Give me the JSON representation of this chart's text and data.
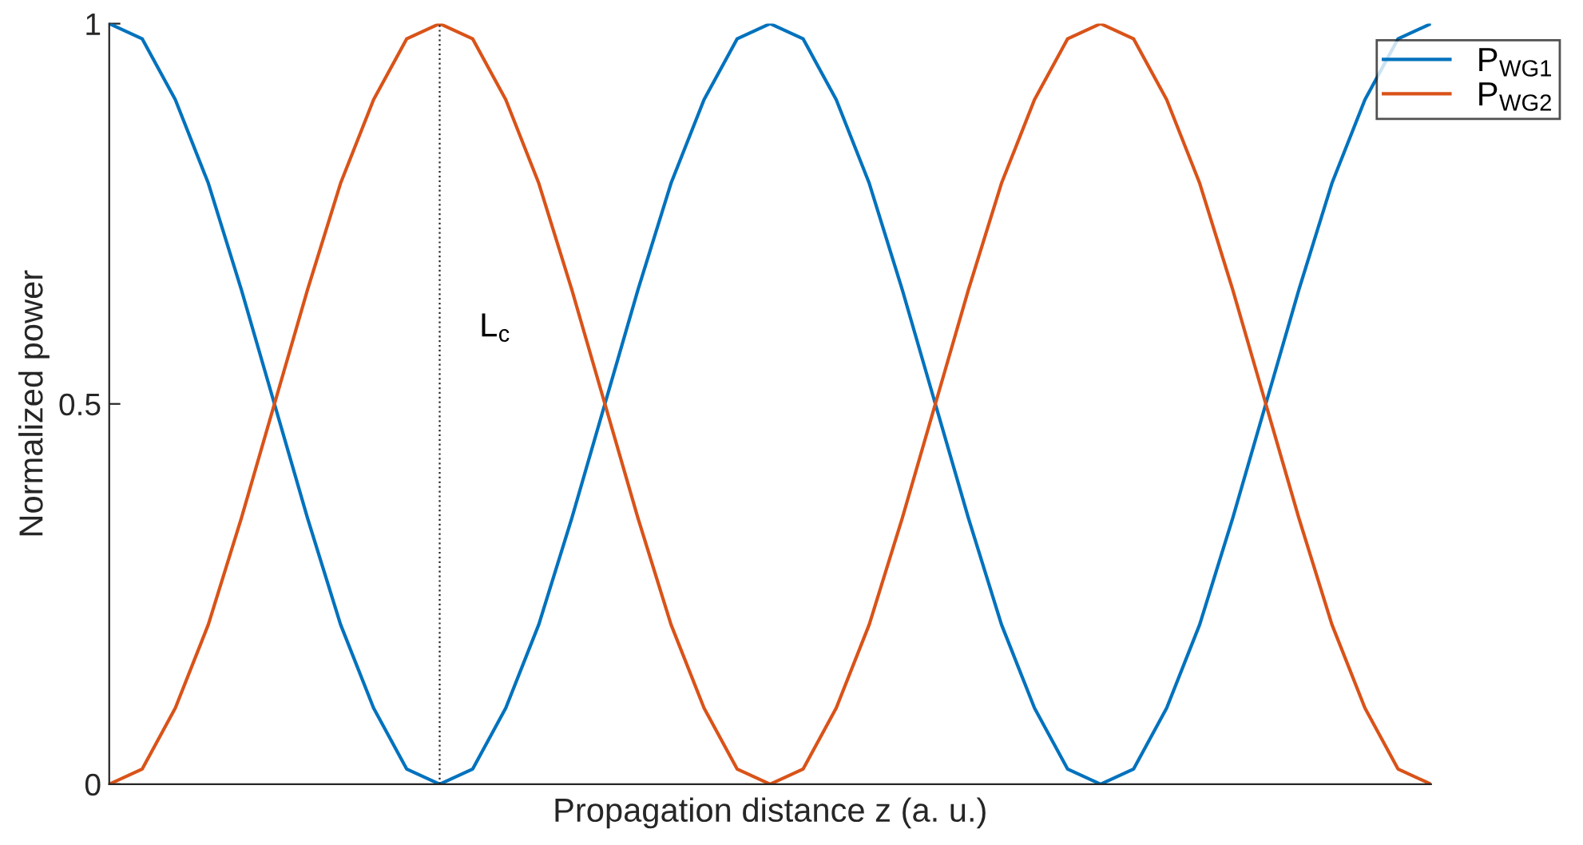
{
  "chart_data": {
    "type": "line",
    "xlabel": "Propagation distance z (a. u.)",
    "ylabel": "Normalized power",
    "categories": [
      null,
      null,
      null,
      null,
      null,
      null,
      null,
      null,
      null,
      null,
      null,
      null,
      null,
      null,
      null,
      null,
      null,
      null,
      null,
      null,
      null,
      null,
      null,
      null,
      null,
      null,
      null,
      null,
      null,
      null,
      null,
      null,
      null,
      null,
      null,
      null,
      null,
      null,
      null,
      null,
      null
    ],
    "series": [
      {
        "name": "P$_{WG1}$",
        "color": "#0072bd",
        "values": [
          1,
          0.98,
          0.9,
          0.79,
          0.65,
          0.5,
          0.35,
          0.21,
          0.1,
          0.02,
          0,
          0.02,
          0.1,
          0.21,
          0.35,
          0.5,
          0.65,
          0.79,
          0.9,
          0.98,
          1,
          0.98,
          0.9,
          0.79,
          0.65,
          0.5,
          0.35,
          0.21,
          0.1,
          0.02,
          0,
          0.02,
          0.1,
          0.21,
          0.35,
          0.5,
          0.65,
          0.79,
          0.9,
          0.98,
          1
        ]
      },
      {
        "name": "P$_{WG2}$",
        "color": "#d95319",
        "values": [
          0,
          0.02,
          0.1,
          0.21,
          0.35,
          0.5,
          0.65,
          0.79,
          0.9,
          0.98,
          1,
          0.98,
          0.9,
          0.79,
          0.65,
          0.5,
          0.35,
          0.21,
          0.1,
          0.02,
          0,
          0.02,
          0.1,
          0.21,
          0.35,
          0.5,
          0.65,
          0.79,
          0.9,
          0.98,
          1,
          0.98,
          0.9,
          0.79,
          0.65,
          0.5,
          0.35,
          0.21,
          0.1,
          0.02,
          0
        ]
      }
    ],
    "ylim": [
      0,
      1
    ],
    "yticks": [
      0,
      0.5,
      1
    ],
    "annotations": [
      "L$_{c}$"
    ],
    "legend": "top right",
    "grid": false,
    "marker": "none",
    "line_style": "solid",
    "tick_labels": "y"
  }
}
